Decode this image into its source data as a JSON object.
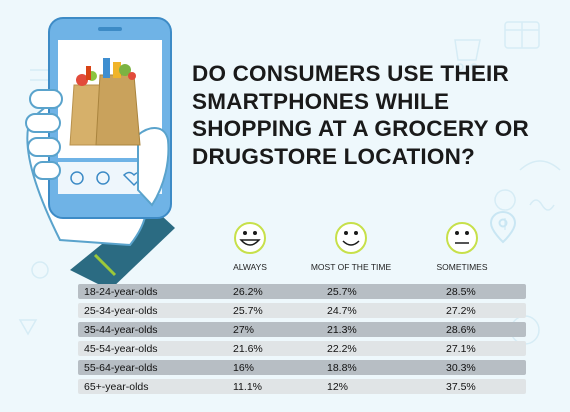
{
  "title": "DO CONSUMERS USE THEIR SMARTPHONES WHILE SHOPPING AT A GROCERY OR DRUGSTORE LOCATION?",
  "colors": {
    "background": "#eef8fc",
    "phone": "#6fb3e6",
    "skin": "#ffffff",
    "row_dark": "#b7bec4",
    "row_light": "#e0e4e6",
    "face": "#c7e04a"
  },
  "icons": [
    "smartphone-in-hand-icon",
    "grocery-bags-icon",
    "big-smile-icon",
    "smile-icon",
    "neutral-face-icon"
  ],
  "chart_data": {
    "type": "table",
    "title": "DO CONSUMERS USE THEIR SMARTPHONES WHILE SHOPPING AT A GROCERY OR DRUGSTORE LOCATION?",
    "columns": [
      "ALWAYS",
      "MOST OF THE TIME",
      "SOMETIMES"
    ],
    "rows": [
      {
        "label": "18-24-year-olds",
        "values": [
          "26.2%",
          "25.7%",
          "28.5%"
        ]
      },
      {
        "label": "25-34-year-olds",
        "values": [
          "25.7%",
          "24.7%",
          "27.2%"
        ]
      },
      {
        "label": "35-44-year-olds",
        "values": [
          "27%",
          "21.3%",
          "28.6%"
        ]
      },
      {
        "label": "45-54-year-olds",
        "values": [
          "21.6%",
          "22.2%",
          "27.1%"
        ]
      },
      {
        "label": "55-64-year-olds",
        "values": [
          "16%",
          "18.8%",
          "30.3%"
        ]
      },
      {
        "label": "65+-year-olds",
        "values": [
          "11.1%",
          "12%",
          "37.5%"
        ]
      }
    ]
  }
}
